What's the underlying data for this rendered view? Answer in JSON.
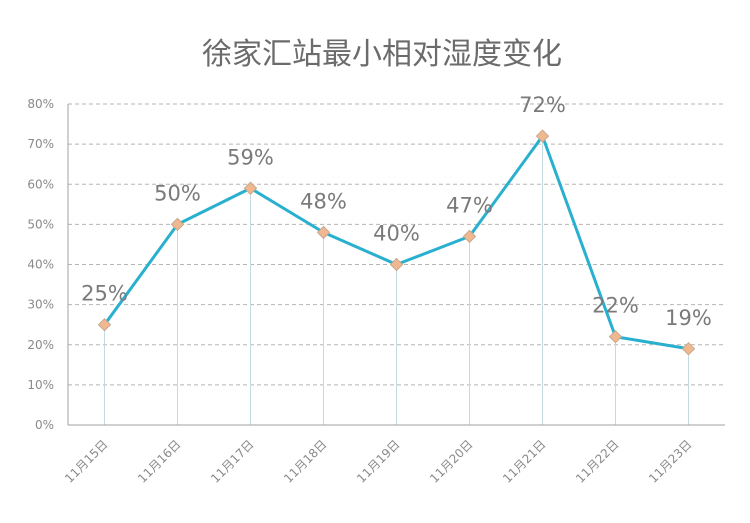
{
  "chart_data": {
    "type": "line",
    "title": "徐家汇站最小相对湿度变化",
    "xlabel": "",
    "ylabel": "",
    "categories": [
      "11月15日",
      "11月16日",
      "11月17日",
      "11月18日",
      "11月19日",
      "11月20日",
      "11月21日",
      "11月22日",
      "11月23日"
    ],
    "values": [
      25,
      50,
      59,
      48,
      40,
      47,
      72,
      22,
      19
    ],
    "data_labels": [
      "25%",
      "50%",
      "59%",
      "48%",
      "40%",
      "47%",
      "72%",
      "22%",
      "19%"
    ],
    "y_ticks": [
      "0%",
      "10%",
      "20%",
      "30%",
      "40%",
      "50%",
      "60%",
      "70%",
      "80%"
    ],
    "ylim": [
      0,
      80
    ],
    "grid": true,
    "line_color": "#2ab0cf",
    "marker_color": "#f0b890",
    "marker_edge_color": "#c9a88c",
    "drop_line_color": "#c5dbe2",
    "grid_color": "#b5b5b5",
    "axis_color": "#a0a0a0"
  }
}
